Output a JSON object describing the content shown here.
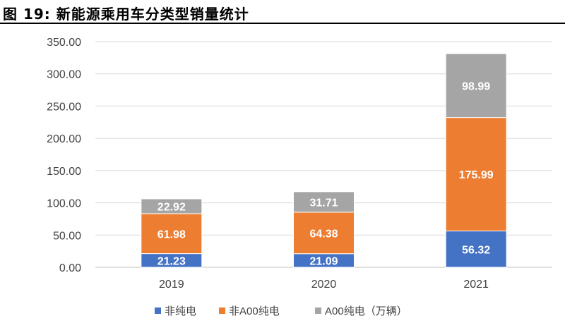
{
  "figure": {
    "title": "图 19:  新能源乘用车分类型销量统计"
  },
  "chart_data": {
    "type": "bar",
    "stacked": true,
    "categories": [
      "2019",
      "2020",
      "2021"
    ],
    "series": [
      {
        "name": "非纯电",
        "color": "#4472C4",
        "values": [
          21.23,
          21.09,
          56.32
        ],
        "labels": [
          "21.23",
          "21.09",
          "56.32"
        ]
      },
      {
        "name": "非A00纯电",
        "color": "#ED7D31",
        "values": [
          61.98,
          64.38,
          175.99
        ],
        "labels": [
          "61.98",
          "64.38",
          "175.99"
        ]
      },
      {
        "name": "A00纯电（万辆）",
        "color": "#A5A5A5",
        "values": [
          22.92,
          31.71,
          98.99
        ],
        "labels": [
          "22.92",
          "31.71",
          "98.99"
        ]
      }
    ],
    "ylim": [
      0,
      350
    ],
    "yticks": [
      "0.00",
      "50.00",
      "100.00",
      "150.00",
      "200.00",
      "250.00",
      "300.00",
      "350.00"
    ],
    "grid": true,
    "legend": "bottom",
    "xlabel": "",
    "ylabel": ""
  }
}
